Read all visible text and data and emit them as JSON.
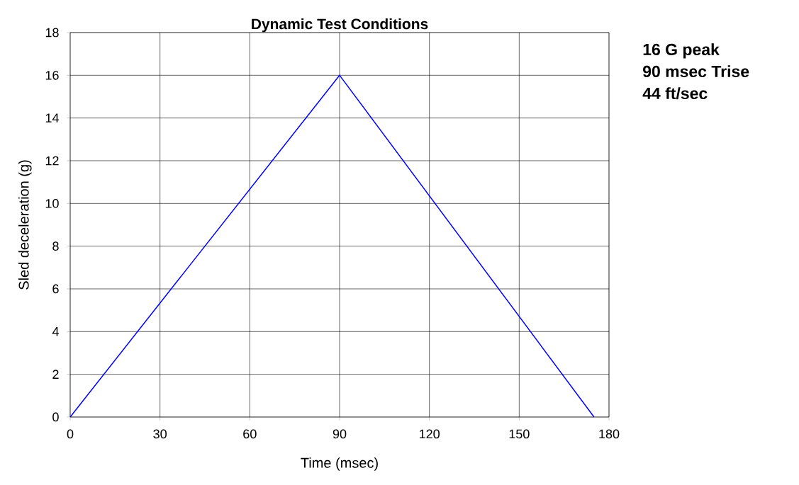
{
  "chart_data": {
    "type": "line",
    "title": "Dynamic Test Conditions",
    "xlabel": "Time (msec)",
    "ylabel": "Sled deceleration (g)",
    "x": [
      0,
      90,
      175
    ],
    "series": [
      {
        "color": "#0000ff",
        "values": [
          0,
          16,
          0
        ]
      }
    ],
    "xlim": [
      0,
      180
    ],
    "xticks": [
      0,
      30,
      60,
      90,
      120,
      150,
      180
    ],
    "ylim": [
      0,
      18
    ],
    "yticks": [
      0,
      2,
      4,
      6,
      8,
      10,
      12,
      14,
      16,
      18
    ],
    "grid": true,
    "marker": "none",
    "line_style": "solid",
    "annotations": [
      "16 G peak",
      "90 msec Trise",
      "44 ft/sec"
    ]
  }
}
